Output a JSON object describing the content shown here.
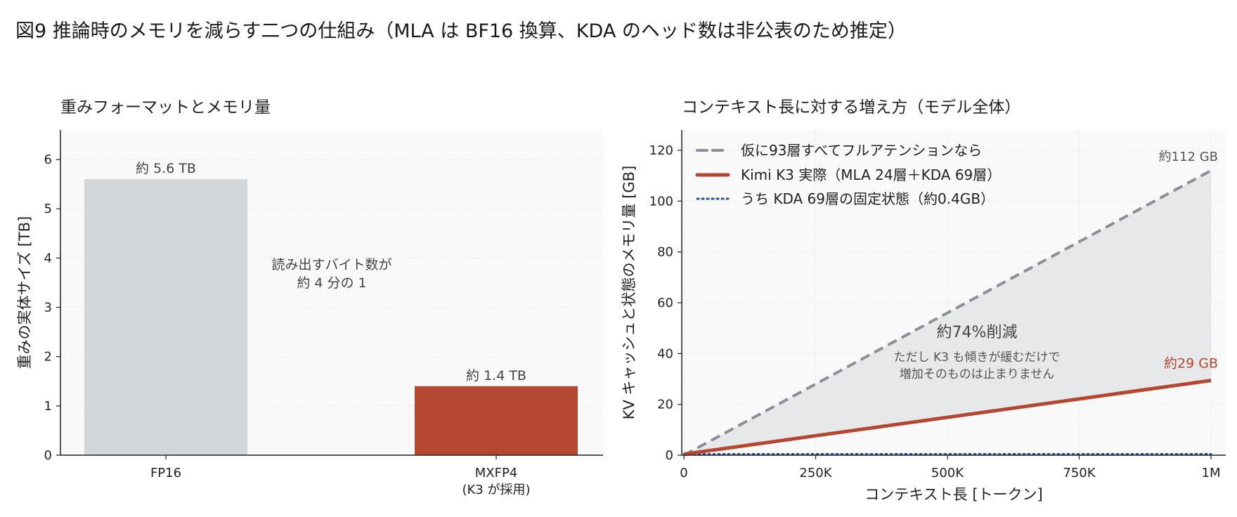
{
  "figure_title": "図9 推論時のメモリを減らす二つの仕組み（MLA は BF16 換算、KDA のヘッド数は非公表のため推定）",
  "colors": {
    "panel_bg": "#f9f9f9",
    "bar_fp16": "#d4d7da",
    "accent_red": "#b54630",
    "dashed_gray": "#8b9098",
    "dotted_blue": "#2d4d8f",
    "fill_gray": "#e3e5e8",
    "grid": "#e2e2e2"
  },
  "chart_data": [
    {
      "type": "bar",
      "title": "重みフォーマットとメモリ量",
      "ylabel": "重みの実体サイズ [TB]",
      "xlabel": "",
      "ylim": [
        0,
        6.6
      ],
      "yticks": [
        0,
        1,
        2,
        3,
        4,
        5,
        6
      ],
      "grid": true,
      "categories": [
        {
          "line1": "FP16",
          "line2": ""
        },
        {
          "line1": "MXFP4",
          "line2": "(K3 が採用)"
        }
      ],
      "values": [
        5.6,
        1.4
      ],
      "value_labels": [
        "約 5.6 TB",
        "約 1.4 TB"
      ],
      "annotation": {
        "line1": "読み出すバイト数が",
        "line2": "約 4 分の 1"
      }
    },
    {
      "type": "line",
      "title": "コンテキスト長に対する増え方（モデル全体）",
      "xlabel": "コンテキスト長 [トークン]",
      "ylabel": "KV キャッシュと状態のメモリ量 [GB]",
      "xlim": [
        0,
        1000000
      ],
      "ylim": [
        0,
        128
      ],
      "xticks": [
        0,
        250000,
        500000,
        750000,
        1000000
      ],
      "xtick_labels": [
        "0",
        "250K",
        "500K",
        "750K",
        "1M"
      ],
      "yticks": [
        0,
        20,
        40,
        60,
        80,
        100,
        120
      ],
      "grid": true,
      "legend_position": "top-left",
      "series": [
        {
          "name": "仮に93層すべてフルアテンションなら",
          "style": "dashed",
          "x": [
            0,
            1000000
          ],
          "y": [
            0,
            112
          ]
        },
        {
          "name": "Kimi K3 実際（MLA 24層＋KDA 69層）",
          "style": "solid",
          "x": [
            0,
            1000000
          ],
          "y": [
            0.4,
            29.4
          ]
        },
        {
          "name": "うち KDA 69層の固定状態（約0.4GB）",
          "style": "dotted",
          "x": [
            0,
            1000000
          ],
          "y": [
            0.4,
            0.4
          ]
        }
      ],
      "end_labels": [
        "約112 GB",
        "約29 GB"
      ],
      "annotation": {
        "main": "約74%削減",
        "sub1": "ただし K3 も傾きが緩むだけで",
        "sub2": "増加そのものは止まりません"
      }
    }
  ]
}
